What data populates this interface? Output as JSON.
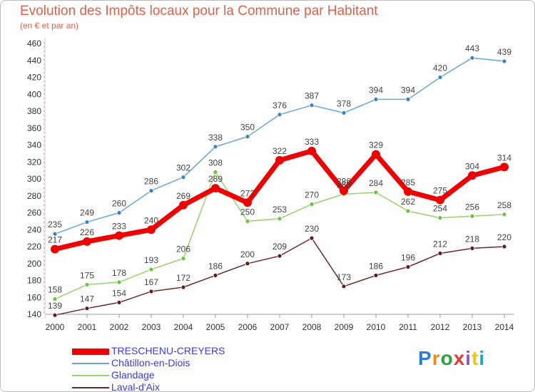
{
  "header": {
    "title": "Evolution des Impôts locaux pour la Commune par Habitant",
    "subtitle": "(en € et par an)"
  },
  "brand": {
    "text": "Proxiti",
    "colors": [
      "#2e7bd6",
      "#f08c1e",
      "#29a33a",
      "#e83b2e",
      "#8a56c8",
      "#f2c31b",
      "#1fa6c9"
    ]
  },
  "chart_data": {
    "type": "line",
    "x": [
      2000,
      2001,
      2002,
      2003,
      2004,
      2005,
      2006,
      2007,
      2008,
      2009,
      2010,
      2011,
      2012,
      2013,
      2014
    ],
    "ylim": [
      140,
      460
    ],
    "yticks": [
      140,
      160,
      180,
      200,
      220,
      240,
      260,
      280,
      300,
      320,
      340,
      360,
      380,
      400,
      420,
      440,
      460
    ],
    "grid": false,
    "legend": "bottom-left",
    "series": [
      {
        "name": "TRESCHENU-CREYERS",
        "color": "#ee0000",
        "values": [
          217,
          226,
          233,
          240,
          269,
          289,
          272,
          322,
          333,
          286,
          329,
          285,
          275,
          304,
          314
        ]
      },
      {
        "name": "Châtillon-en-Diois",
        "color": "#6aa6d8",
        "values": [
          235,
          249,
          260,
          286,
          302,
          338,
          350,
          376,
          387,
          378,
          394,
          394,
          420,
          443,
          439
        ]
      },
      {
        "name": "Glandage",
        "color": "#95d36b",
        "values": [
          158,
          175,
          178,
          193,
          206,
          308,
          250,
          253,
          270,
          282,
          284,
          262,
          254,
          256,
          258
        ]
      },
      {
        "name": "Laval-d'Aix",
        "color": "#6b2a2a",
        "values": [
          139,
          147,
          154,
          167,
          172,
          186,
          200,
          209,
          230,
          173,
          186,
          196,
          212,
          218,
          220
        ]
      }
    ]
  }
}
